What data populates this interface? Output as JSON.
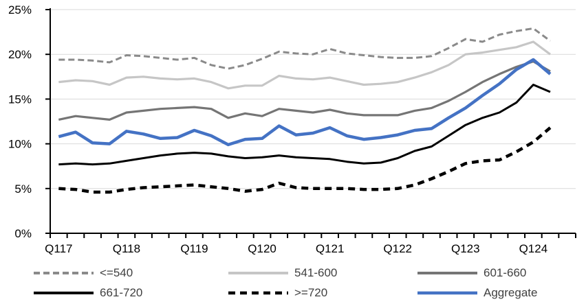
{
  "chart_data": {
    "type": "line",
    "title": "",
    "xlabel": "",
    "ylabel": "",
    "ylim": [
      0,
      25
    ],
    "ytick_step": 5,
    "y_tick_labels": [
      "0%",
      "5%",
      "10%",
      "15%",
      "20%",
      "25%"
    ],
    "x_tick_labels": [
      "Q117",
      "Q118",
      "Q119",
      "Q120",
      "Q121",
      "Q122",
      "Q123",
      "Q124"
    ],
    "x_label_every": 4,
    "n_points": 30,
    "grid": "horizontal",
    "legend_position": "bottom",
    "gridline_color": "#d9d9d9",
    "axis_color": "#000000",
    "series": [
      {
        "name": "<=540",
        "color": "#8a8a8a",
        "dash": "9 5",
        "width": 3,
        "values": [
          19.4,
          19.4,
          19.3,
          19.1,
          19.9,
          19.8,
          19.6,
          19.4,
          19.6,
          18.8,
          18.4,
          18.8,
          19.5,
          20.3,
          20.1,
          20.0,
          20.6,
          20.1,
          19.9,
          19.7,
          19.6,
          19.6,
          19.8,
          20.7,
          21.7,
          21.4,
          22.2,
          22.6,
          22.9,
          21.5
        ]
      },
      {
        "name": "541-600",
        "color": "#c6c6c6",
        "dash": "",
        "width": 3.2,
        "values": [
          16.9,
          17.1,
          17.0,
          16.6,
          17.4,
          17.5,
          17.3,
          17.2,
          17.3,
          16.9,
          16.2,
          16.5,
          16.5,
          17.6,
          17.3,
          17.2,
          17.4,
          17.0,
          16.6,
          16.7,
          16.9,
          17.4,
          18.0,
          18.8,
          20.0,
          20.2,
          20.5,
          20.8,
          21.4,
          20.0
        ]
      },
      {
        "name": "601-660",
        "color": "#757575",
        "dash": "",
        "width": 3.2,
        "values": [
          12.7,
          13.1,
          12.9,
          12.7,
          13.5,
          13.7,
          13.9,
          14.0,
          14.1,
          13.9,
          12.9,
          13.4,
          13.1,
          13.9,
          13.7,
          13.5,
          13.8,
          13.4,
          13.2,
          13.2,
          13.2,
          13.7,
          14.0,
          14.8,
          15.8,
          16.9,
          17.8,
          18.6,
          19.2,
          18.1
        ]
      },
      {
        "name": "661-720",
        "color": "#000000",
        "dash": "",
        "width": 3,
        "values": [
          7.7,
          7.8,
          7.7,
          7.8,
          8.1,
          8.4,
          8.7,
          8.9,
          9.0,
          8.9,
          8.6,
          8.4,
          8.5,
          8.7,
          8.5,
          8.4,
          8.3,
          8.0,
          7.8,
          7.9,
          8.4,
          9.2,
          9.7,
          10.9,
          12.1,
          12.9,
          13.5,
          14.6,
          16.6,
          15.8
        ]
      },
      {
        "name": ">=720",
        "color": "#000000",
        "dash": "10 7",
        "width": 4.5,
        "values": [
          5.0,
          4.9,
          4.6,
          4.6,
          4.9,
          5.1,
          5.2,
          5.3,
          5.4,
          5.2,
          5.0,
          4.7,
          4.9,
          5.6,
          5.1,
          5.0,
          5.0,
          5.0,
          4.9,
          4.9,
          5.0,
          5.4,
          6.1,
          6.9,
          7.8,
          8.1,
          8.2,
          9.1,
          10.2,
          11.8
        ]
      },
      {
        "name": "Aggregate",
        "color": "#4472c4",
        "dash": "",
        "width": 4.5,
        "values": [
          10.8,
          11.3,
          10.1,
          10.0,
          11.4,
          11.1,
          10.6,
          10.7,
          11.5,
          10.9,
          9.9,
          10.5,
          10.6,
          12.0,
          11.0,
          11.2,
          11.8,
          10.9,
          10.5,
          10.7,
          11.0,
          11.5,
          11.7,
          12.9,
          14.0,
          15.4,
          16.7,
          18.3,
          19.4,
          17.8
        ]
      }
    ]
  }
}
